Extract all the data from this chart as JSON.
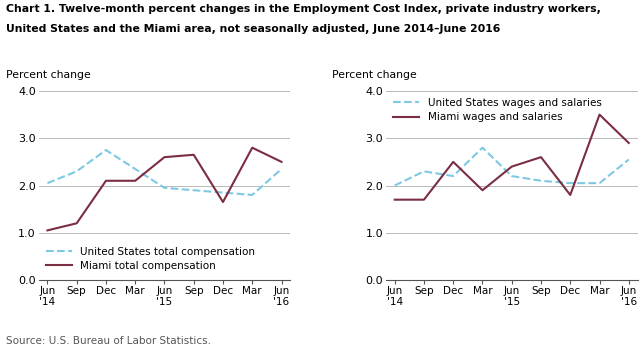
{
  "title_line1": "Chart 1. Twelve-month percent changes in the Employment Cost Index, private industry workers,",
  "title_line2": "United States and the Miami area, not seasonally adjusted, June 2014–June 2016",
  "source": "Source: U.S. Bureau of Labor Statistics.",
  "ylabel": "Percent change",
  "ylim": [
    0.0,
    4.0
  ],
  "yticks": [
    0.0,
    1.0,
    2.0,
    3.0,
    4.0
  ],
  "x_labels": [
    "Jun\n'14",
    "Sep",
    "Dec",
    "Mar",
    "Jun\n'15",
    "Sep",
    "Dec",
    "Mar",
    "Jun\n'16"
  ],
  "left": {
    "us_total": [
      2.05,
      2.3,
      2.75,
      2.35,
      1.95,
      1.9,
      1.85,
      1.8,
      2.35
    ],
    "miami_total": [
      1.05,
      1.2,
      2.1,
      2.1,
      2.6,
      2.65,
      1.65,
      2.8,
      2.5
    ],
    "us_label": "United States total compensation",
    "miami_label": "Miami total compensation"
  },
  "right": {
    "us_wages": [
      2.0,
      2.3,
      2.2,
      2.8,
      2.2,
      2.1,
      2.05,
      2.05,
      2.55
    ],
    "miami_wages": [
      1.7,
      1.7,
      2.5,
      1.9,
      2.4,
      2.6,
      1.8,
      3.5,
      2.9
    ],
    "us_label": "United States wages and salaries",
    "miami_label": "Miami wages and salaries"
  },
  "us_color": "#7ec8e3",
  "miami_color": "#7b2d42",
  "us_linestyle": "--",
  "miami_linestyle": "-",
  "linewidth": 1.5
}
